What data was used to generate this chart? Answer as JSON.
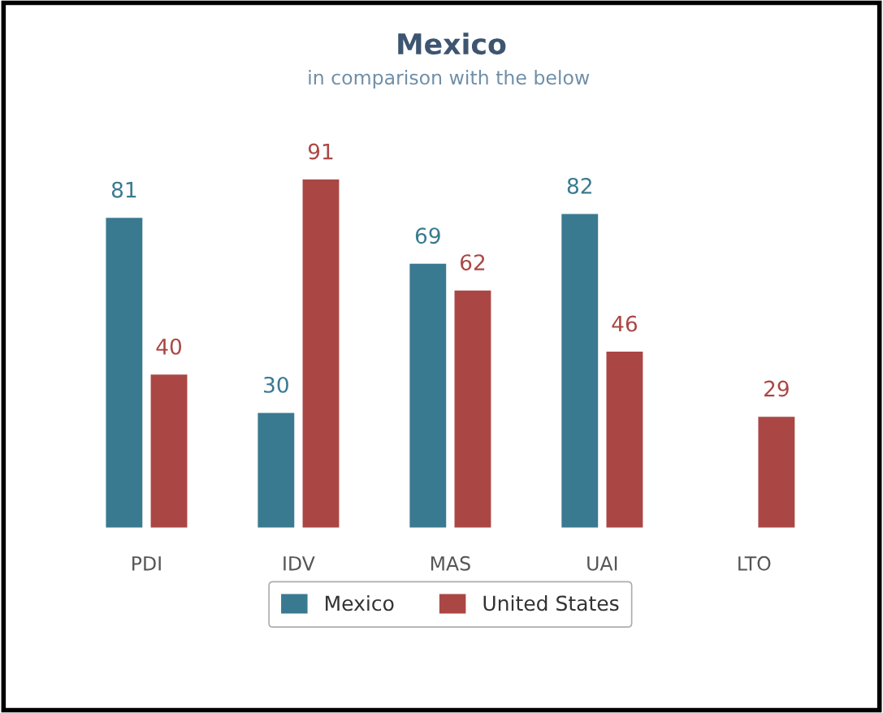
{
  "chart_data": {
    "type": "bar",
    "title": "Mexico",
    "subtitle": "in comparison with the below",
    "categories": [
      "PDI",
      "IDV",
      "MAS",
      "UAI",
      "LTO"
    ],
    "series": [
      {
        "name": "Mexico",
        "color": "#3a7a90",
        "values": [
          81,
          30,
          69,
          82,
          null
        ]
      },
      {
        "name": "United States",
        "color": "#aa4744",
        "values": [
          40,
          91,
          62,
          46,
          29
        ]
      }
    ],
    "data_labels": true,
    "legend": "bottom",
    "grid": false,
    "tick_labels": "x"
  }
}
